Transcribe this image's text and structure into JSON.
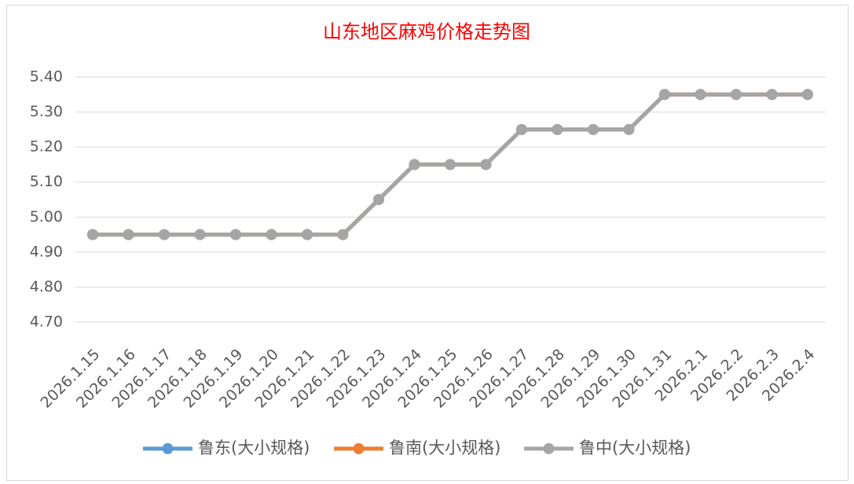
{
  "chart_data": {
    "type": "line",
    "title": "山东地区麻鸡价格走势图",
    "categories": [
      "2026.1.15",
      "2026.1.16",
      "2026.1.17",
      "2026.1.18",
      "2026.1.19",
      "2026.1.20",
      "2026.1.21",
      "2026.1.22",
      "2026.1.23",
      "2026.1.24",
      "2026.1.25",
      "2026.1.26",
      "2026.1.27",
      "2026.1.28",
      "2026.1.29",
      "2026.1.30",
      "2026.1.31",
      "2026.2.1",
      "2026.2.2",
      "2026.2.3",
      "2026.2.4"
    ],
    "series": [
      {
        "name": "鲁东(大小规格)",
        "color": "#5b9bd5",
        "values": [
          4.95,
          4.95,
          4.95,
          4.95,
          4.95,
          4.95,
          4.95,
          4.95,
          5.05,
          5.15,
          5.15,
          5.15,
          5.25,
          5.25,
          5.25,
          5.25,
          5.35,
          5.35,
          5.35,
          5.35,
          5.35
        ]
      },
      {
        "name": "鲁南(大小规格)",
        "color": "#ed7d31",
        "values": [
          4.95,
          4.95,
          4.95,
          4.95,
          4.95,
          4.95,
          4.95,
          4.95,
          5.05,
          5.15,
          5.15,
          5.15,
          5.25,
          5.25,
          5.25,
          5.25,
          5.35,
          5.35,
          5.35,
          5.35,
          5.35
        ]
      },
      {
        "name": "鲁中(大小规格)",
        "color": "#a5a5a5",
        "values": [
          4.95,
          4.95,
          4.95,
          4.95,
          4.95,
          4.95,
          4.95,
          4.95,
          5.05,
          5.15,
          5.15,
          5.15,
          5.25,
          5.25,
          5.25,
          5.25,
          5.35,
          5.35,
          5.35,
          5.35,
          5.35
        ]
      }
    ],
    "ylim": [
      4.7,
      5.4
    ],
    "yticks": [
      {
        "value": 4.7,
        "label": "4.70"
      },
      {
        "value": 4.8,
        "label": "4.80"
      },
      {
        "value": 4.9,
        "label": "4.90"
      },
      {
        "value": 5.0,
        "label": "5.00"
      },
      {
        "value": 5.1,
        "label": "5.10"
      },
      {
        "value": 5.2,
        "label": "5.20"
      },
      {
        "value": 5.3,
        "label": "5.30"
      },
      {
        "value": 5.4,
        "label": "5.40"
      }
    ],
    "grid": true,
    "legend": "bottom"
  }
}
